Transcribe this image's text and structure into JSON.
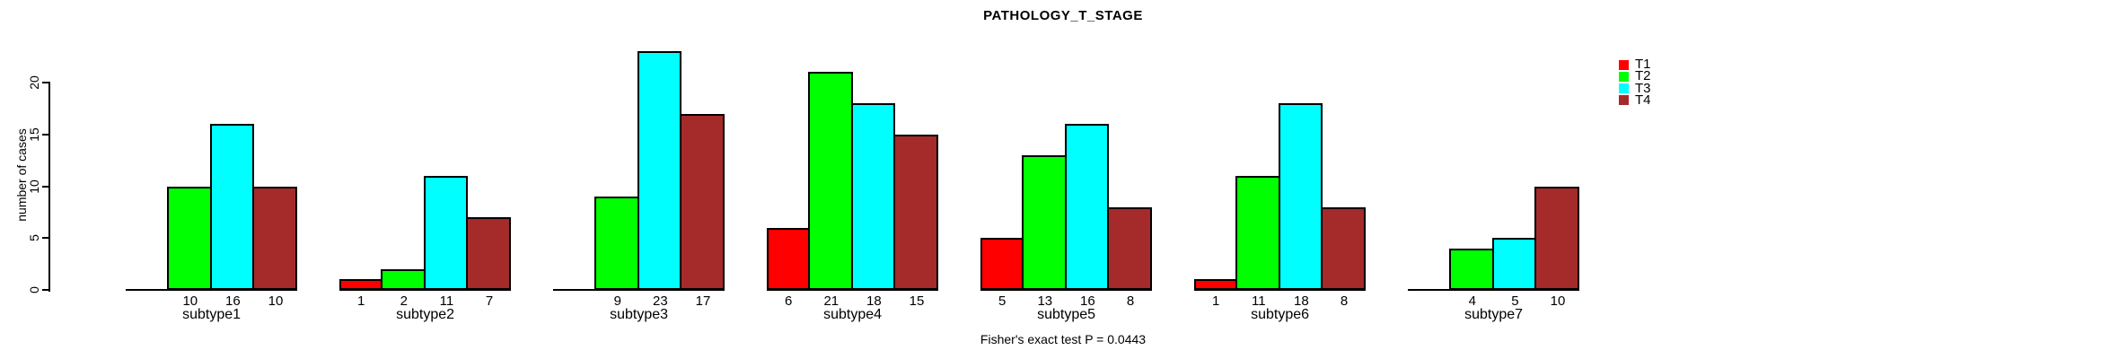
{
  "title": "PATHOLOGY_T_STAGE",
  "footer": "Fisher's exact test P = 0.0443",
  "chart_data": {
    "type": "bar",
    "title": "PATHOLOGY_T_STAGE",
    "xlabel": "",
    "ylabel": "number of cases",
    "annotation": "Fisher's exact test P = 0.0443",
    "grid": false,
    "legend_position": "right-top",
    "bar_value_labels_shown": true,
    "yticks": [
      0,
      5,
      10,
      15,
      20
    ],
    "ylim": [
      0,
      23.5
    ],
    "categories": [
      "subtype1",
      "subtype2",
      "subtype3",
      "subtype4",
      "subtype5",
      "subtype6",
      "subtype7"
    ],
    "series": [
      {
        "name": "T1",
        "color": "#FF0000",
        "values": [
          0,
          1,
          0,
          6,
          5,
          1,
          0
        ]
      },
      {
        "name": "T2",
        "color": "#00FF00",
        "values": [
          10,
          2,
          9,
          21,
          13,
          11,
          4
        ]
      },
      {
        "name": "T3",
        "color": "#00FFFF",
        "values": [
          16,
          11,
          23,
          18,
          16,
          18,
          5
        ]
      },
      {
        "name": "T4",
        "color": "#A52A2A",
        "values": [
          10,
          7,
          17,
          15,
          8,
          8,
          10
        ]
      }
    ]
  }
}
